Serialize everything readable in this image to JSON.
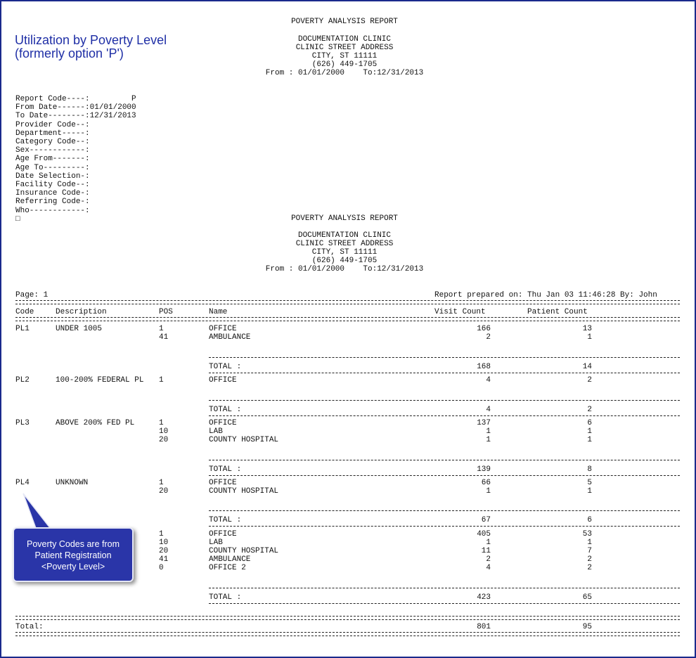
{
  "side_title": {
    "line1": "Utilization by Poverty Level",
    "line2": "(formerly option 'P')"
  },
  "header1": {
    "title": "POVERTY ANALYSIS REPORT",
    "clinic": "DOCUMENTATION CLINIC",
    "address": "CLINIC STREET ADDRESS",
    "city": "CITY, ST 11111",
    "phone": "(626) 449-1705",
    "range": "From : 01/01/2000    To:12/31/2013"
  },
  "params": [
    "Report Code----:         P",
    "From Date------:01/01/2000",
    "To Date--------:12/31/2013",
    "Provider Code--:",
    "Department-----:",
    "Category Code--:",
    "Sex------------:",
    "Age From-------:",
    "Age To---------:",
    "Date Selection-:",
    "Facility Code--:",
    "Insurance Code-:",
    "Referring Code-:",
    "Who------------:",
    "□"
  ],
  "header2": {
    "title": "POVERTY ANALYSIS REPORT",
    "clinic": "DOCUMENTATION CLINIC",
    "address": "CLINIC STREET ADDRESS",
    "city": "CITY, ST 11111",
    "phone": "(626) 449-1705",
    "range": "From : 01/01/2000    To:12/31/2013"
  },
  "page_label": "Page: 1",
  "prepared": "Report prepared on: Thu Jan 03 11:46:28 By: John",
  "columns": {
    "code": "Code",
    "description": "Description",
    "pos": "POS",
    "name": "Name",
    "visit": "Visit Count",
    "patient": "Patient Count"
  },
  "groups": [
    {
      "code": "PL1",
      "description": "UNDER 1005",
      "rows": [
        {
          "pos": "1",
          "name": "OFFICE",
          "visit": "166",
          "patient": "13"
        },
        {
          "pos": "41",
          "name": "AMBULANCE",
          "visit": "2",
          "patient": "1"
        }
      ],
      "total_label": "TOTAL :",
      "total_visit": "168",
      "total_patient": "14"
    },
    {
      "code": "PL2",
      "description": "100-200% FEDERAL PL",
      "rows": [
        {
          "pos": "1",
          "name": "OFFICE",
          "visit": "4",
          "patient": "2"
        }
      ],
      "total_label": "TOTAL :",
      "total_visit": "4",
      "total_patient": "2"
    },
    {
      "code": "PL3",
      "description": "ABOVE 200% FED PL",
      "rows": [
        {
          "pos": "1",
          "name": "OFFICE",
          "visit": "137",
          "patient": "6"
        },
        {
          "pos": "10",
          "name": "LAB",
          "visit": "1",
          "patient": "1"
        },
        {
          "pos": "20",
          "name": "COUNTY HOSPITAL",
          "visit": "1",
          "patient": "1"
        }
      ],
      "total_label": "TOTAL :",
      "total_visit": "139",
      "total_patient": "8"
    },
    {
      "code": "PL4",
      "description": "UNKNOWN",
      "rows": [
        {
          "pos": "1",
          "name": "OFFICE",
          "visit": "66",
          "patient": "5"
        },
        {
          "pos": "20",
          "name": "COUNTY HOSPITAL",
          "visit": "1",
          "patient": "1"
        }
      ],
      "total_label": "TOTAL :",
      "total_visit": "67",
      "total_patient": "6"
    },
    {
      "code": "",
      "description": "",
      "rows": [
        {
          "pos": "1",
          "name": "OFFICE",
          "visit": "405",
          "patient": "53"
        },
        {
          "pos": "10",
          "name": "LAB",
          "visit": "1",
          "patient": "1"
        },
        {
          "pos": "20",
          "name": "COUNTY HOSPITAL",
          "visit": "11",
          "patient": "7"
        },
        {
          "pos": "41",
          "name": "AMBULANCE",
          "visit": "2",
          "patient": "2"
        },
        {
          "pos": "0",
          "name": "OFFICE 2",
          "visit": "4",
          "patient": "2"
        }
      ],
      "total_label": "TOTAL :",
      "total_visit": "423",
      "total_patient": "65"
    }
  ],
  "grand_total": {
    "label": "Total:",
    "visit": "801",
    "patient": "95"
  },
  "callout": {
    "line1": "Poverty Codes are from",
    "line2": "Patient Registration",
    "line3": "<Poverty Level>"
  }
}
